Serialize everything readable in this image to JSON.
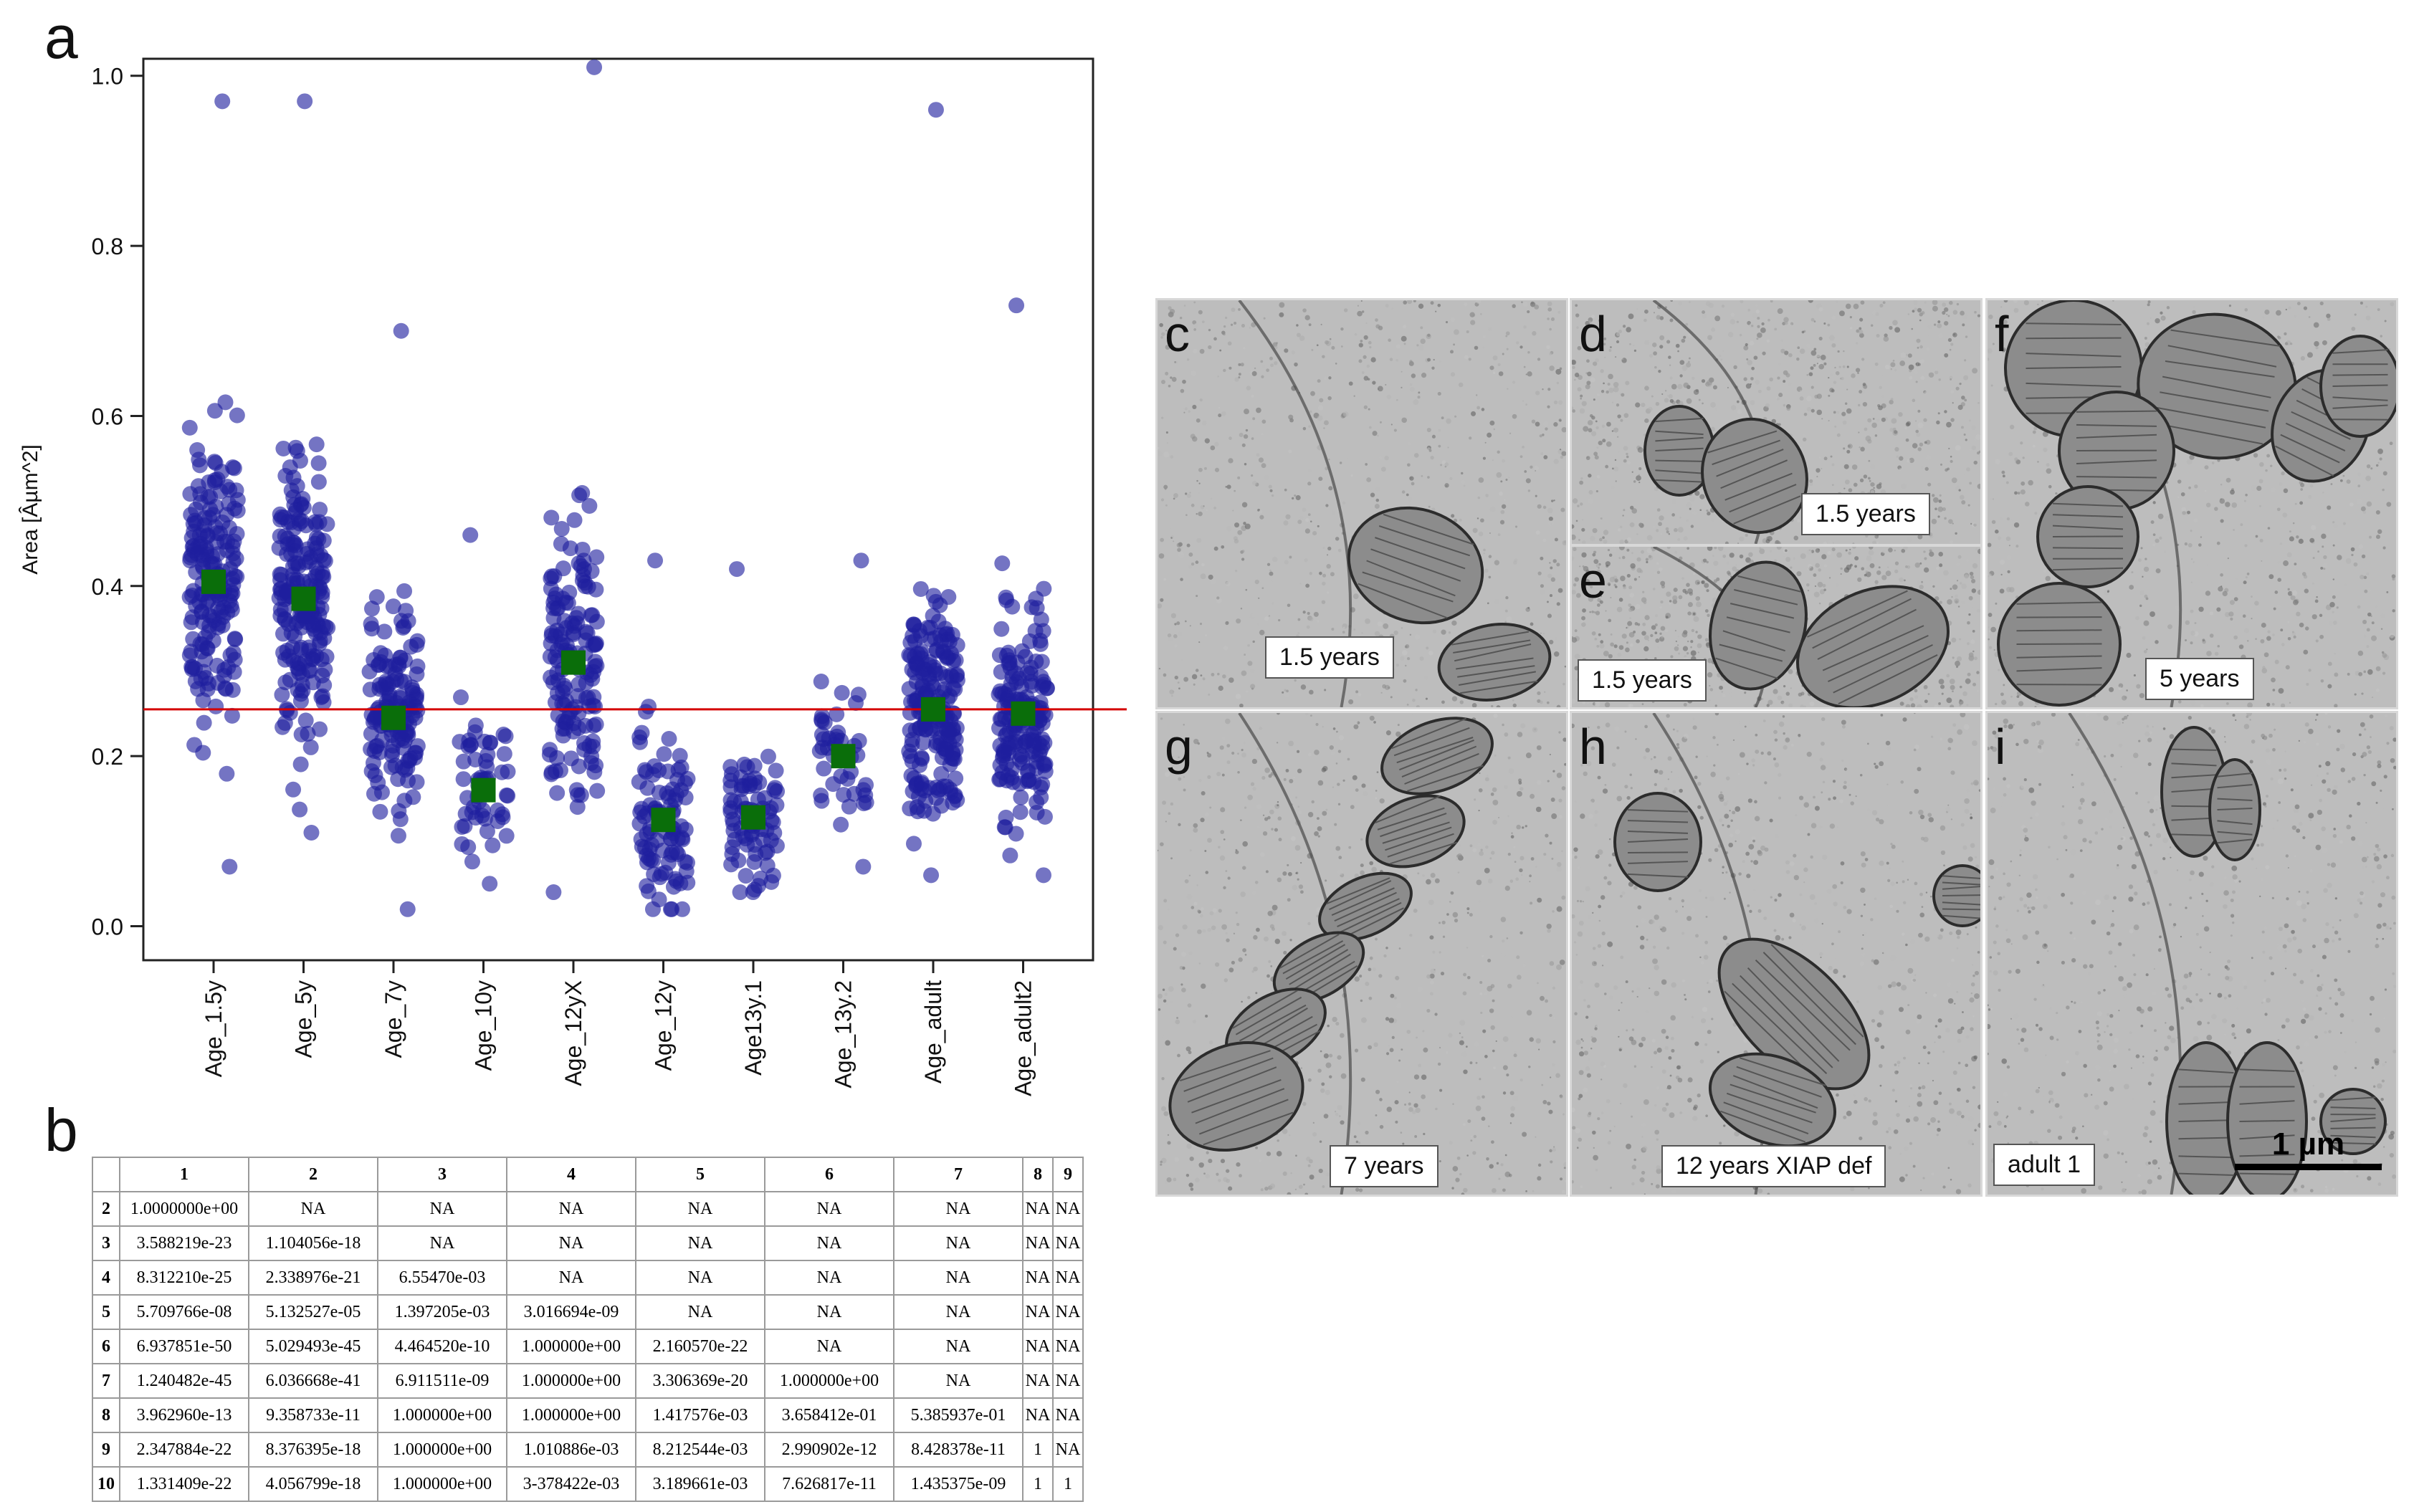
{
  "panel_letters": {
    "a": "a",
    "b": "b",
    "c": "c",
    "d": "d",
    "e": "e",
    "f": "f",
    "g": "g",
    "h": "h",
    "i": "i"
  },
  "chart_data": {
    "type": "scatter",
    "title": "",
    "xlabel": "",
    "ylabel": "Area [Âµm^2]",
    "ylim": [
      -0.04,
      1.02
    ],
    "yticks": [
      "0.0",
      "0.2",
      "0.4",
      "0.6",
      "0.8",
      "1.0"
    ],
    "ytick_values": [
      0.0,
      0.2,
      0.4,
      0.6,
      0.8,
      1.0
    ],
    "categories": [
      "Age_1.5y",
      "Age_5y",
      "Age_7y",
      "Age_10y",
      "Age_12yX",
      "Age_12y",
      "Age13y.1",
      "Age_13y.2",
      "Age_adult",
      "Age_adult2"
    ],
    "series": [
      {
        "values": [
          0.405,
          0.385,
          0.245,
          0.16,
          0.31,
          0.125,
          0.128,
          0.2,
          0.255,
          0.25
        ]
      }
    ],
    "reference_line": 0.255,
    "grid": false,
    "colors": {
      "points": "#1f1f9e",
      "means": "#0a6e0a",
      "reference": "#d40000"
    }
  },
  "pvalue_table": {
    "column_headers": [
      "1",
      "2",
      "3",
      "4",
      "5",
      "6",
      "7",
      "8",
      "9"
    ],
    "rows": [
      {
        "label": "2",
        "cells": [
          "1.0000000e+00",
          "NA",
          "NA",
          "NA",
          "NA",
          "NA",
          "NA",
          "NA",
          "NA"
        ]
      },
      {
        "label": "3",
        "cells": [
          "3.588219e-23",
          "1.104056e-18",
          "NA",
          "NA",
          "NA",
          "NA",
          "NA",
          "NA",
          "NA"
        ]
      },
      {
        "label": "4",
        "cells": [
          "8.312210e-25",
          "2.338976e-21",
          "6.55470e-03",
          "NA",
          "NA",
          "NA",
          "NA",
          "NA",
          "NA"
        ]
      },
      {
        "label": "5",
        "cells": [
          "5.709766e-08",
          "5.132527e-05",
          "1.397205e-03",
          "3.016694e-09",
          "NA",
          "NA",
          "NA",
          "NA",
          "NA"
        ]
      },
      {
        "label": "6",
        "cells": [
          "6.937851e-50",
          "5.029493e-45",
          "4.464520e-10",
          "1.000000e+00",
          "2.160570e-22",
          "NA",
          "NA",
          "NA",
          "NA"
        ]
      },
      {
        "label": "7",
        "cells": [
          "1.240482e-45",
          "6.036668e-41",
          "6.911511e-09",
          "1.000000e+00",
          "3.306369e-20",
          "1.000000e+00",
          "NA",
          "NA",
          "NA"
        ]
      },
      {
        "label": "8",
        "cells": [
          "3.962960e-13",
          "9.358733e-11",
          "1.000000e+00",
          "1.000000e+00",
          "1.417576e-03",
          "3.658412e-01",
          "5.385937e-01",
          "NA",
          "NA"
        ]
      },
      {
        "label": "9",
        "cells": [
          "2.347884e-22",
          "8.376395e-18",
          "1.000000e+00",
          "1.010886e-03",
          "8.212544e-03",
          "2.990902e-12",
          "8.428378e-11",
          "1",
          "NA"
        ]
      },
      {
        "label": "10",
        "cells": [
          "1.331409e-22",
          "4.056799e-18",
          "1.000000e+00",
          "3-378422e-03",
          "3.189661e-03",
          "7.626817e-11",
          "1.435375e-09",
          "1",
          "1"
        ]
      }
    ]
  },
  "micrographs": {
    "c": {
      "label": "1.5 years"
    },
    "d": {
      "label": "1.5 years"
    },
    "e": {
      "label": "1.5 years"
    },
    "f": {
      "label": "5 years"
    },
    "g": {
      "label": "7 years"
    },
    "h": {
      "label": "12 years XIAP def"
    },
    "i": {
      "label": "adult 1"
    }
  },
  "scale_bar": {
    "label": "1 µm"
  }
}
